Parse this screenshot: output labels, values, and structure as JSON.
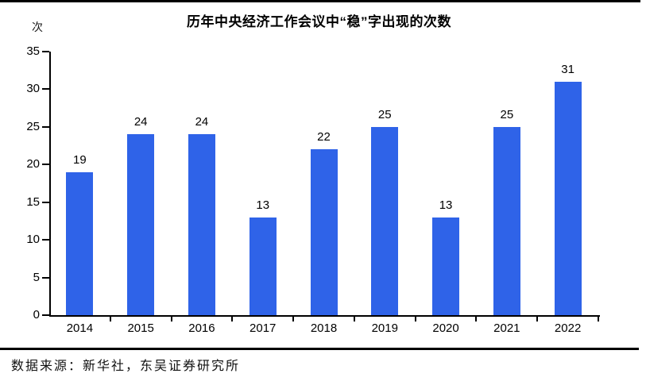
{
  "chart_data": {
    "type": "bar",
    "title": "历年中央经济工作会议中“稳”字出现的次数",
    "ylabel": "次",
    "xlabel": "",
    "categories": [
      "2014",
      "2015",
      "2016",
      "2017",
      "2018",
      "2019",
      "2020",
      "2021",
      "2022"
    ],
    "values": [
      19,
      24,
      24,
      13,
      22,
      25,
      13,
      25,
      31
    ],
    "ylim": [
      0,
      35
    ],
    "yticks": [
      0,
      5,
      10,
      15,
      20,
      25,
      30,
      35
    ],
    "bar_color": "#2f63e8",
    "grid": false,
    "legend_position": "none",
    "value_labels_shown": true
  },
  "footer": {
    "source_text": "数据来源：新华社，东吴证券研究所"
  }
}
